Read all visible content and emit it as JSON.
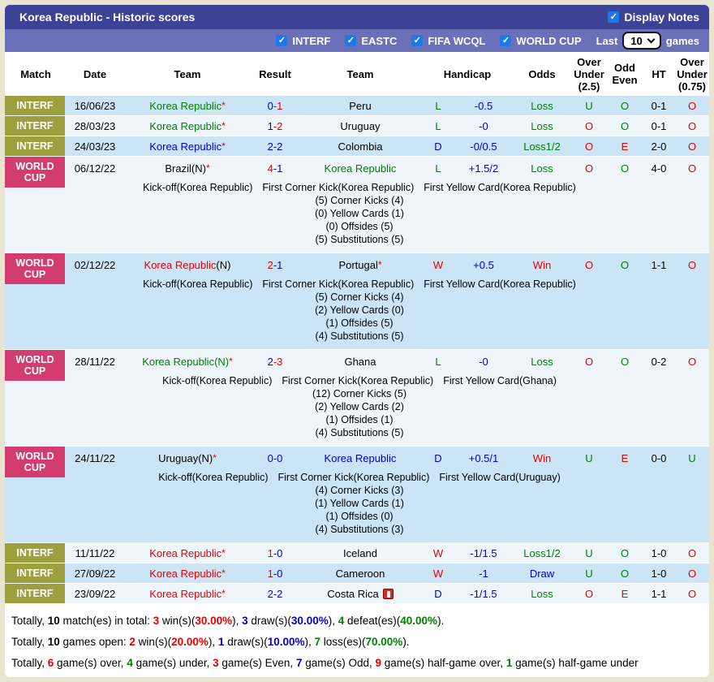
{
  "score_sep": "-",
  "icons": {
    "check": "✓"
  },
  "colors": {
    "red": "#e60000",
    "green": "#008000",
    "blue": "#0000cc",
    "black": "#000000"
  },
  "header": {
    "title": "Korea Republic - Historic scores",
    "display_notes_label": "Display Notes",
    "filters": [
      {
        "label": "INTERF",
        "checked": true
      },
      {
        "label": "EASTC",
        "checked": true
      },
      {
        "label": "FIFA WCQL",
        "checked": true
      },
      {
        "label": "WORLD CUP",
        "checked": true
      }
    ],
    "last_label": "Last",
    "last_value": "10",
    "games_label": "games"
  },
  "table": {
    "columns": {
      "match": "Match",
      "date": "Date",
      "team1": "Team",
      "result": "Result",
      "team2": "Team",
      "handicap": "Handicap",
      "odds": "Odds",
      "ou25": "Over Under (2.5)",
      "odd_even": "Odd Even",
      "ht": "HT",
      "ou075": "Over Under (0.75)"
    }
  },
  "matches": [
    {
      "league": "INTERF",
      "league_color": "#9da03f",
      "date": "16/06/23",
      "home": {
        "name": "Korea Republic",
        "color": "#008000",
        "tag": "",
        "tag_color": "#000000",
        "star": "*"
      },
      "score": {
        "home": "0",
        "home_color": "#0000cc",
        "away": "1",
        "away_color": "#e60000"
      },
      "away": {
        "name": "Peru",
        "color": "#000000",
        "tag": "",
        "tag_color": "#000000",
        "star": ""
      },
      "letter": "L",
      "letter_color": "#008000",
      "handicap": "-0.5",
      "odds": "Loss",
      "odds_color": "#008000",
      "ou25": "U",
      "ou25_color": "#008000",
      "odd_even": "O",
      "odd_even_color": "#008000",
      "ht": "0-1",
      "ou075": "O",
      "ou075_color": "#e60000"
    },
    {
      "league": "INTERF",
      "league_color": "#9da03f",
      "date": "28/03/23",
      "home": {
        "name": "Korea Republic",
        "color": "#008000",
        "tag": "",
        "tag_color": "#000000",
        "star": "*"
      },
      "score": {
        "home": "1",
        "home_color": "#0000cc",
        "away": "2",
        "away_color": "#e60000"
      },
      "away": {
        "name": "Uruguay",
        "color": "#000000",
        "tag": "",
        "tag_color": "#000000",
        "star": ""
      },
      "letter": "L",
      "letter_color": "#008000",
      "handicap": "-0",
      "odds": "Loss",
      "odds_color": "#008000",
      "ou25": "O",
      "ou25_color": "#e60000",
      "odd_even": "O",
      "odd_even_color": "#008000",
      "ht": "0-1",
      "ou075": "O",
      "ou075_color": "#e60000"
    },
    {
      "league": "INTERF",
      "league_color": "#9da03f",
      "date": "24/03/23",
      "home": {
        "name": "Korea Republic",
        "color": "#0000cc",
        "tag": "",
        "tag_color": "#000000",
        "star": "*"
      },
      "score": {
        "home": "2",
        "home_color": "#0000cc",
        "away": "2",
        "away_color": "#0000cc"
      },
      "away": {
        "name": "Colombia",
        "color": "#000000",
        "tag": "",
        "tag_color": "#000000",
        "star": ""
      },
      "letter": "D",
      "letter_color": "#0000cc",
      "handicap": "-0/0.5",
      "odds": "Loss1/2",
      "odds_color": "#008000",
      "ou25": "O",
      "ou25_color": "#e60000",
      "odd_even": "E",
      "odd_even_color": "#e60000",
      "ht": "2-0",
      "ou075": "O",
      "ou075_color": "#e60000"
    },
    {
      "league": "WORLD CUP",
      "league_color": "#d23c6e",
      "date": "06/12/22",
      "home": {
        "name": "Brazil",
        "color": "#000000",
        "tag": "(N)",
        "tag_color": "#000000",
        "star": "*"
      },
      "score": {
        "home": "4",
        "home_color": "#e60000",
        "away": "1",
        "away_color": "#0000cc"
      },
      "away": {
        "name": "Korea Republic",
        "color": "#008000",
        "tag": "",
        "tag_color": "#000000",
        "star": ""
      },
      "letter": "L",
      "letter_color": "#008000",
      "handicap": "+1.5/2",
      "odds": "Loss",
      "odds_color": "#008000",
      "ou25": "O",
      "ou25_color": "#e60000",
      "odd_even": "O",
      "odd_even_color": "#008000",
      "ht": "4-0",
      "ou075": "O",
      "ou075_color": "#e60000",
      "details": {
        "kickoff": "Kick-off(Korea Republic)",
        "corner": "First Corner Kick(Korea Republic)",
        "yellow": "First Yellow Card(Korea Republic)",
        "stats": [
          "(5) Corner Kicks (4)",
          "(0) Yellow Cards (1)",
          "(0) Offsides (5)",
          "(5) Substitutions (5)"
        ]
      }
    },
    {
      "league": "WORLD CUP",
      "league_color": "#d23c6e",
      "date": "02/12/22",
      "home": {
        "name": "Korea Republic",
        "color": "#e60000",
        "tag": "(N)",
        "tag_color": "#000000",
        "star": ""
      },
      "score": {
        "home": "2",
        "home_color": "#e60000",
        "away": "1",
        "away_color": "#0000cc"
      },
      "away": {
        "name": "Portugal",
        "color": "#000000",
        "tag": "",
        "tag_color": "#000000",
        "star": "*"
      },
      "letter": "W",
      "letter_color": "#e60000",
      "handicap": "+0.5",
      "odds": "Win",
      "odds_color": "#e60000",
      "ou25": "O",
      "ou25_color": "#e60000",
      "odd_even": "O",
      "odd_even_color": "#008000",
      "ht": "1-1",
      "ou075": "O",
      "ou075_color": "#e60000",
      "details": {
        "kickoff": "Kick-off(Korea Republic)",
        "corner": "First Corner Kick(Korea Republic)",
        "yellow": "First Yellow Card(Korea Republic)",
        "stats": [
          "(5) Corner Kicks (4)",
          "(2) Yellow Cards (0)",
          "(1) Offsides (5)",
          "(4) Substitutions (5)"
        ]
      }
    },
    {
      "league": "WORLD CUP",
      "league_color": "#d23c6e",
      "date": "28/11/22",
      "home": {
        "name": "Korea Republic",
        "color": "#008000",
        "tag": "(N)",
        "tag_color": "#008000",
        "star": "*"
      },
      "score": {
        "home": "2",
        "home_color": "#0000cc",
        "away": "3",
        "away_color": "#e60000"
      },
      "away": {
        "name": "Ghana",
        "color": "#000000",
        "tag": "",
        "tag_color": "#000000",
        "star": ""
      },
      "letter": "L",
      "letter_color": "#008000",
      "handicap": "-0",
      "odds": "Loss",
      "odds_color": "#008000",
      "ou25": "O",
      "ou25_color": "#e60000",
      "odd_even": "O",
      "odd_even_color": "#008000",
      "ht": "0-2",
      "ou075": "O",
      "ou075_color": "#e60000",
      "details": {
        "kickoff": "Kick-off(Korea Republic)",
        "corner": "First Corner Kick(Korea Republic)",
        "yellow": "First Yellow Card(Ghana)",
        "stats": [
          "(12) Corner Kicks (5)",
          "(2) Yellow Cards (2)",
          "(1) Offsides (1)",
          "(4) Substitutions (5)"
        ]
      }
    },
    {
      "league": "WORLD CUP",
      "league_color": "#d23c6e",
      "date": "24/11/22",
      "home": {
        "name": "Uruguay",
        "color": "#000000",
        "tag": "(N)",
        "tag_color": "#000000",
        "star": "*"
      },
      "score": {
        "home": "0",
        "home_color": "#0000cc",
        "away": "0",
        "away_color": "#0000cc"
      },
      "away": {
        "name": "Korea Republic",
        "color": "#0000cc",
        "tag": "",
        "tag_color": "#000000",
        "star": ""
      },
      "letter": "D",
      "letter_color": "#0000cc",
      "handicap": "+0.5/1",
      "odds": "Win",
      "odds_color": "#e60000",
      "ou25": "U",
      "ou25_color": "#008000",
      "odd_even": "E",
      "odd_even_color": "#e60000",
      "ht": "0-0",
      "ou075": "U",
      "ou075_color": "#008000",
      "details": {
        "kickoff": "Kick-off(Korea Republic)",
        "corner": "First Corner Kick(Korea Republic)",
        "yellow": "First Yellow Card(Uruguay)",
        "stats": [
          "(4) Corner Kicks (3)",
          "(1) Yellow Cards (1)",
          "(1) Offsides (0)",
          "(4) Substitutions (3)"
        ]
      }
    },
    {
      "league": "INTERF",
      "league_color": "#9da03f",
      "date": "11/11/22",
      "home": {
        "name": "Korea Republic",
        "color": "#e60000",
        "tag": "",
        "tag_color": "#000000",
        "star": "*"
      },
      "score": {
        "home": "1",
        "home_color": "#e60000",
        "away": "0",
        "away_color": "#0000cc"
      },
      "away": {
        "name": "Iceland",
        "color": "#000000",
        "tag": "",
        "tag_color": "#000000",
        "star": ""
      },
      "letter": "W",
      "letter_color": "#e60000",
      "handicap": "-1/1.5",
      "odds": "Loss1/2",
      "odds_color": "#008000",
      "ou25": "U",
      "ou25_color": "#008000",
      "odd_even": "O",
      "odd_even_color": "#008000",
      "ht": "1-0",
      "ou075": "O",
      "ou075_color": "#e60000"
    },
    {
      "league": "INTERF",
      "league_color": "#9da03f",
      "date": "27/09/22",
      "home": {
        "name": "Korea Republic",
        "color": "#e60000",
        "tag": "",
        "tag_color": "#000000",
        "star": "*"
      },
      "score": {
        "home": "1",
        "home_color": "#e60000",
        "away": "0",
        "away_color": "#0000cc"
      },
      "away": {
        "name": "Cameroon",
        "color": "#000000",
        "tag": "",
        "tag_color": "#000000",
        "star": ""
      },
      "letter": "W",
      "letter_color": "#e60000",
      "handicap": "-1",
      "odds": "Draw",
      "odds_color": "#0000cc",
      "ou25": "U",
      "ou25_color": "#008000",
      "odd_even": "O",
      "odd_even_color": "#008000",
      "ht": "1-0",
      "ou075": "O",
      "ou075_color": "#e60000"
    },
    {
      "league": "INTERF",
      "league_color": "#9da03f",
      "date": "23/09/22",
      "home": {
        "name": "Korea Republic",
        "color": "#e60000",
        "tag": "",
        "tag_color": "#000000",
        "star": "*"
      },
      "score": {
        "home": "2",
        "home_color": "#0000cc",
        "away": "2",
        "away_color": "#0000cc"
      },
      "away": {
        "name": "Costa Rica",
        "color": "#000000",
        "tag": "",
        "tag_color": "#000000",
        "star": "",
        "red_card": true
      },
      "letter": "D",
      "letter_color": "#0000cc",
      "handicap": "-1/1.5",
      "odds": "Loss",
      "odds_color": "#008000",
      "ou25": "O",
      "ou25_color": "#e60000",
      "odd_even": "E",
      "odd_even_color": "#e60000",
      "ht": "1-1",
      "ou075": "O",
      "ou075_color": "#e60000"
    }
  ],
  "footer": {
    "lines": [
      {
        "segments": [
          {
            "t": "Totally, "
          },
          {
            "t": "10",
            "b": 1
          },
          {
            "t": " match(es) in total: "
          },
          {
            "t": "3",
            "c": "red",
            "b": 1
          },
          {
            "t": " win(s)("
          },
          {
            "t": "30.00%",
            "c": "red",
            "b": 1
          },
          {
            "t": "), "
          },
          {
            "t": "3",
            "c": "blue",
            "b": 1
          },
          {
            "t": " draw(s)("
          },
          {
            "t": "30.00%",
            "c": "blue",
            "b": 1
          },
          {
            "t": "), "
          },
          {
            "t": "4",
            "c": "green",
            "b": 1
          },
          {
            "t": " defeat(es)("
          },
          {
            "t": "40.00%",
            "c": "green",
            "b": 1
          },
          {
            "t": ")."
          }
        ]
      },
      {
        "segments": [
          {
            "t": "Totally, "
          },
          {
            "t": "10",
            "b": 1
          },
          {
            "t": " games open: "
          },
          {
            "t": "2",
            "c": "red",
            "b": 1
          },
          {
            "t": " win(s)("
          },
          {
            "t": "20.00%",
            "c": "red",
            "b": 1
          },
          {
            "t": "), "
          },
          {
            "t": "1",
            "c": "blue",
            "b": 1
          },
          {
            "t": " draw(s)("
          },
          {
            "t": "10.00%",
            "c": "blue",
            "b": 1
          },
          {
            "t": "), "
          },
          {
            "t": "7",
            "c": "green",
            "b": 1
          },
          {
            "t": " loss(es)("
          },
          {
            "t": "70.00%",
            "c": "green",
            "b": 1
          },
          {
            "t": ")."
          }
        ]
      },
      {
        "segments": [
          {
            "t": "Totally, "
          },
          {
            "t": "6",
            "c": "red",
            "b": 1
          },
          {
            "t": " game(s) over, "
          },
          {
            "t": "4",
            "c": "green",
            "b": 1
          },
          {
            "t": " game(s) under, "
          },
          {
            "t": "3",
            "c": "red",
            "b": 1
          },
          {
            "t": " game(s) Even, "
          },
          {
            "t": "7",
            "c": "blue",
            "b": 1
          },
          {
            "t": " game(s) Odd, "
          },
          {
            "t": "9",
            "c": "red",
            "b": 1
          },
          {
            "t": " game(s) half-game over, "
          },
          {
            "t": "1",
            "c": "green",
            "b": 1
          },
          {
            "t": " game(s) half-game under"
          }
        ]
      }
    ]
  }
}
